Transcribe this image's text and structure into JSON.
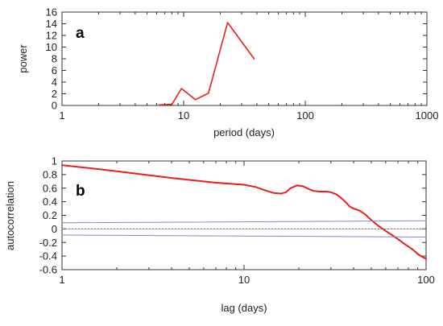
{
  "colors": {
    "data_line": "#ee1c1c",
    "confidence_line": "#7f88d8",
    "zero_line": "#6b6b6b",
    "frame": "#333333"
  },
  "chart_data": [
    {
      "type": "line",
      "panel_label": "a",
      "xlabel": "period (days)",
      "ylabel": "power",
      "x_scale": "log",
      "xlim": [
        1,
        1000
      ],
      "ylim": [
        0,
        16
      ],
      "x_ticks": [
        1,
        10,
        100,
        1000
      ],
      "x_tick_labels": [
        "1",
        "10",
        "100",
        "1000"
      ],
      "y_ticks": [
        0,
        2,
        4,
        6,
        8,
        10,
        12,
        14,
        16
      ],
      "y_tick_labels": [
        "0",
        "2",
        "4",
        "6",
        "8",
        "10",
        "12",
        "14",
        "16"
      ],
      "grid": false,
      "series": [
        {
          "x": [
            6.3,
            8.0,
            9.6,
            12.5,
            16.0,
            23.0,
            38.0
          ],
          "y": [
            0.1,
            0.2,
            2.9,
            1.0,
            2.1,
            14.2,
            8.0
          ]
        }
      ]
    },
    {
      "type": "line",
      "panel_label": "b",
      "xlabel": "lag (days)",
      "ylabel": "autocorrelation",
      "x_scale": "log",
      "xlim": [
        1,
        100
      ],
      "ylim": [
        -0.6,
        1
      ],
      "x_ticks": [
        1,
        10,
        100
      ],
      "x_tick_labels": [
        "1",
        "10",
        "100"
      ],
      "y_ticks": [
        1,
        0.8,
        0.6,
        0.4,
        0.2,
        0,
        -0.2,
        -0.4,
        -0.6
      ],
      "y_tick_labels": [
        "1",
        "0.8",
        "0.6",
        "0.4",
        "0.2",
        "0",
        "-0.2",
        "-0.4",
        "-0.6"
      ],
      "grid": false,
      "series": [
        {
          "x": [
            1,
            2,
            4,
            7,
            10,
            11.5,
            13,
            14.5,
            16,
            17,
            18,
            19.5,
            21,
            22.5,
            24,
            26,
            28,
            30,
            32,
            34,
            36,
            38,
            40,
            43,
            46,
            50,
            55,
            60,
            65,
            70,
            75,
            80,
            85,
            90,
            95,
            100
          ],
          "y": [
            0.94,
            0.85,
            0.75,
            0.68,
            0.65,
            0.62,
            0.57,
            0.53,
            0.52,
            0.54,
            0.6,
            0.64,
            0.63,
            0.59,
            0.56,
            0.55,
            0.55,
            0.54,
            0.51,
            0.46,
            0.4,
            0.33,
            0.3,
            0.27,
            0.22,
            0.13,
            0.04,
            -0.03,
            -0.09,
            -0.15,
            -0.21,
            -0.26,
            -0.31,
            -0.37,
            -0.41,
            -0.44
          ]
        },
        {
          "x": [
            1,
            100
          ],
          "y": [
            0.09,
            0.12
          ]
        },
        {
          "x": [
            1,
            100
          ],
          "y": [
            -0.09,
            -0.12
          ]
        },
        {
          "x": [
            1,
            100
          ],
          "y": [
            0,
            0
          ]
        }
      ]
    }
  ]
}
